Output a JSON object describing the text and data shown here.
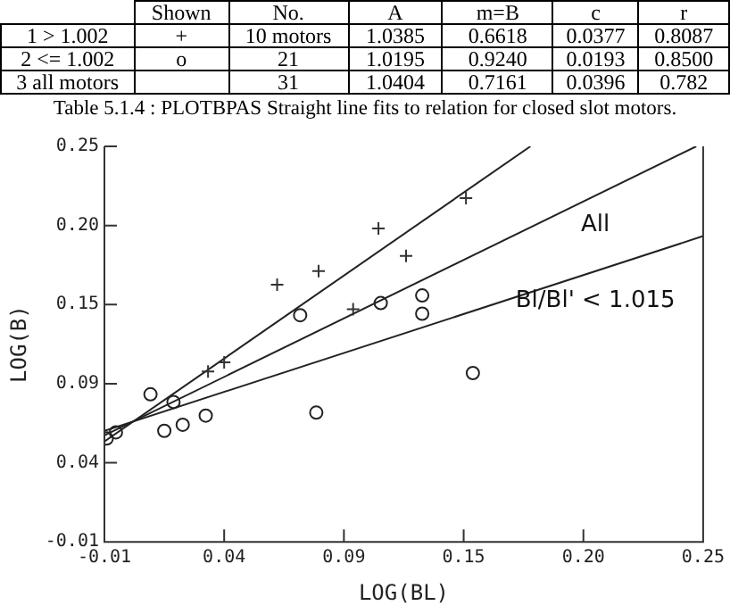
{
  "chart_data": [
    {
      "type": "other",
      "title": "Table 5.1.4 : PLOTBPAS Straight line fits to relation for closed slot motors.",
      "annotations": [
        null,
        "Shown",
        "No.",
        "A",
        "m=B",
        "c",
        "r",
        "1 > 1.002",
        "+",
        "10 motors",
        "1.0385",
        "0.6618",
        "0.0377",
        "0.8087",
        "2 <= 1.002",
        "o",
        "21",
        "1.0195",
        "0.9240",
        "0.0193",
        "0.8500",
        "3 all motors",
        null,
        "31",
        "1.0404",
        "0.7161",
        "0.0396",
        "0.782"
      ]
    },
    {
      "type": "scatter",
      "xlabel": "LOG(BL)",
      "ylabel": "LOG(B)",
      "grid": false,
      "legend": false,
      "xlim": [
        -0.01,
        0.25
      ],
      "ylim": [
        -0.01,
        0.25
      ],
      "xticks": [
        -0.01,
        {
          "value": 0.042,
          "label": "0.04"
        },
        {
          "value": 0.094,
          "label": "0.09"
        },
        {
          "value": 0.146,
          "label": "0.15"
        },
        {
          "value": 0.198,
          "label": "0.20"
        },
        {
          "value": 0.25,
          "label": "0.25"
        }
      ],
      "yticks": [
        -0.01,
        {
          "value": 0.042,
          "label": "0.04"
        },
        {
          "value": 0.094,
          "label": "0.09"
        },
        {
          "value": 0.146,
          "label": "0.15"
        },
        {
          "value": 0.198,
          "label": "0.20"
        },
        {
          "value": 0.25,
          "label": "0.25"
        }
      ],
      "series": [
        {
          "type": "scatter",
          "marker": "cross",
          "color": "#333333",
          "x": [
            0.035,
            0.042,
            0.065,
            0.083,
            0.098,
            0.109,
            0.121,
            0.147
          ],
          "values": [
            0.102,
            0.108,
            0.159,
            0.168,
            0.143,
            0.196,
            0.178,
            0.216
          ]
        },
        {
          "type": "scatter",
          "marker": "circle",
          "color": "#222222",
          "x": [
            -0.009,
            -0.005,
            0.01,
            0.016,
            0.02,
            0.024,
            0.034,
            0.075,
            0.082,
            0.11,
            0.128,
            0.128,
            0.15
          ],
          "values": [
            0.058,
            0.062,
            0.087,
            0.063,
            0.082,
            0.067,
            0.073,
            0.139,
            0.075,
            0.147,
            0.152,
            0.14,
            0.101
          ]
        },
        {
          "type": "line",
          "marker": "none",
          "color": "#222222",
          "x": [
            -0.01,
            0.175
          ],
          "values": [
            0.056,
            0.25
          ]
        },
        {
          "type": "line",
          "marker": "none",
          "color": "#222222",
          "name": "All",
          "x": [
            -0.01,
            0.247
          ],
          "values": [
            0.06,
            0.25
          ]
        },
        {
          "type": "line",
          "marker": "none",
          "color": "#222222",
          "name": "Bl/Bl' < 1.015",
          "x": [
            -0.01,
            0.25
          ],
          "values": [
            0.063,
            0.191
          ]
        }
      ]
    }
  ]
}
